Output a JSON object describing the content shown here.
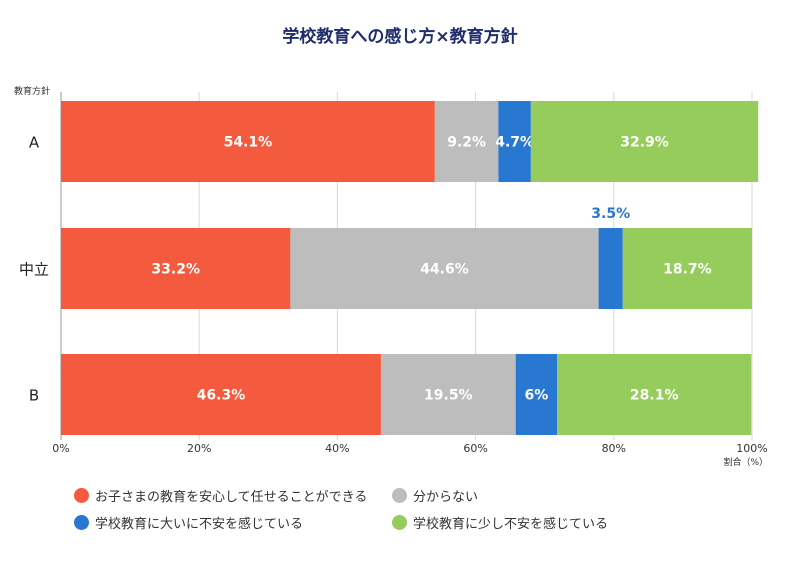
{
  "chart_data": {
    "type": "bar",
    "orientation": "horizontal",
    "stacked": true,
    "title": "学校教育への感じ方×教育方針",
    "ylabel": "教育方針",
    "xlabel": "割合（%）",
    "xlim": [
      0,
      100
    ],
    "x_ticks": [
      "0%",
      "20%",
      "40%",
      "60%",
      "80%",
      "100%"
    ],
    "grid": true,
    "legend_position": "bottom",
    "categories": [
      "A",
      "中立",
      "B"
    ],
    "series": [
      {
        "name": "お子さまの教育を安心して任せることができる",
        "color": "#f45b3e",
        "values": [
          54.1,
          33.2,
          46.3
        ],
        "labels": [
          "54.1%",
          "33.2%",
          "46.3%"
        ]
      },
      {
        "name": "分からない",
        "color": "#bdbdbd",
        "values": [
          9.2,
          44.6,
          19.5
        ],
        "labels": [
          "9.2%",
          "44.6%",
          "19.5%"
        ]
      },
      {
        "name": "学校教育に大いに不安を感じている",
        "color": "#2877d1",
        "values": [
          4.7,
          3.5,
          6
        ],
        "labels": [
          "4.7%",
          "3.5%",
          "6%"
        ]
      },
      {
        "name": "学校教育に少し不安を感じている",
        "color": "#95cc5b",
        "values": [
          32.9,
          18.7,
          28.1
        ],
        "labels": [
          "32.9%",
          "18.7%",
          "28.1%"
        ]
      }
    ]
  }
}
